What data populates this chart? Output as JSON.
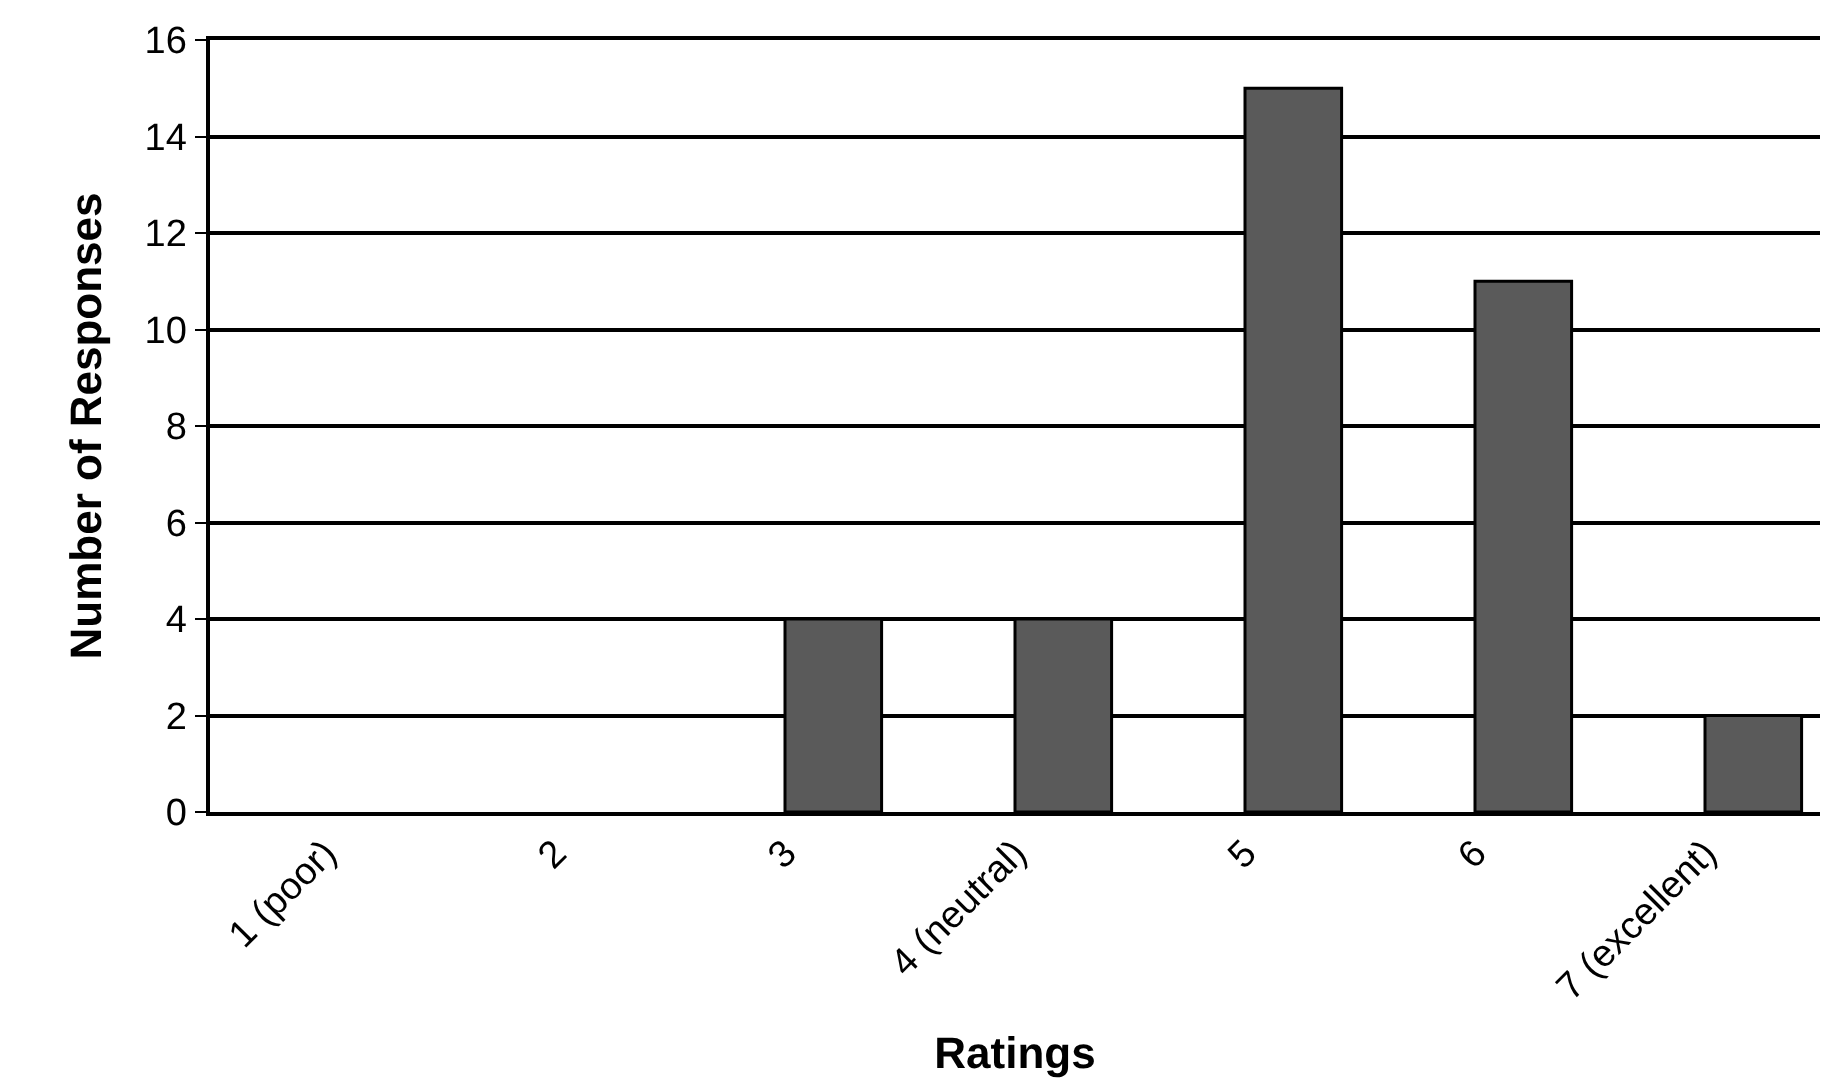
{
  "chart_data": {
    "type": "bar",
    "xlabel": "Ratings",
    "ylabel": "Number of Responses",
    "categories": [
      "1 (poor)",
      "2",
      "3",
      "4 (neutral)",
      "5",
      "6",
      "7 (excellent)"
    ],
    "values": [
      0,
      0,
      4,
      4,
      15,
      11,
      2
    ],
    "color": "#5a5a5a",
    "ylim": [
      0,
      16
    ],
    "yticks": [
      0,
      2,
      4,
      6,
      8,
      10,
      12,
      14,
      16
    ],
    "grid": "y"
  }
}
